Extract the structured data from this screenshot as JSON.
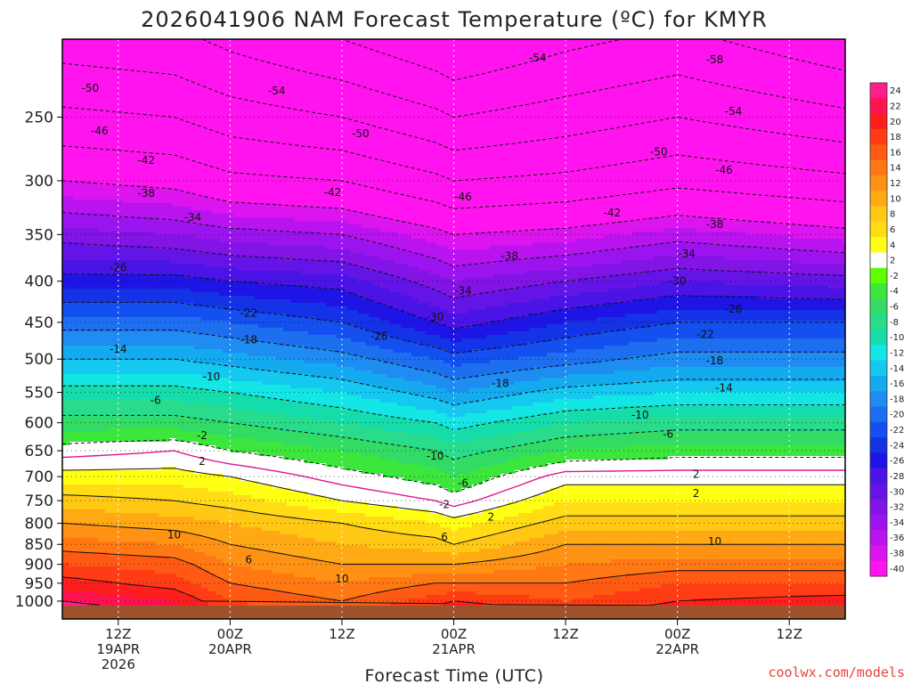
{
  "chart_data": {
    "type": "heatmap",
    "title": "2026041906 NAM Forecast Temperature (ºC) for KMYR",
    "xlabel": "Forecast Time (UTC)",
    "ylabel": "",
    "y_axis": {
      "scale": "log",
      "ticks": [
        250,
        300,
        350,
        400,
        450,
        500,
        550,
        600,
        650,
        700,
        750,
        800,
        850,
        900,
        950,
        1000
      ],
      "range": [
        200,
        1013
      ]
    },
    "x_axis": {
      "range_hours": [
        0,
        84
      ],
      "ticks": [
        {
          "hour": 6,
          "lines": [
            "12Z",
            "19APR",
            "2026"
          ]
        },
        {
          "hour": 18,
          "lines": [
            "00Z",
            "20APR"
          ]
        },
        {
          "hour": 30,
          "lines": [
            "12Z"
          ]
        },
        {
          "hour": 42,
          "lines": [
            "00Z",
            "21APR"
          ]
        },
        {
          "hour": 54,
          "lines": [
            "12Z"
          ]
        },
        {
          "hour": 66,
          "lines": [
            "00Z",
            "22APR"
          ]
        },
        {
          "hour": 78,
          "lines": [
            "12Z"
          ]
        }
      ]
    },
    "grid": true,
    "colorbar": {
      "placement": "right",
      "levels": [
        24,
        22,
        20,
        18,
        16,
        14,
        12,
        10,
        8,
        6,
        4,
        2,
        -2,
        -4,
        -6,
        -8,
        -10,
        -12,
        -14,
        -16,
        -18,
        -20,
        -22,
        -24,
        -26,
        -28,
        -30,
        -32,
        -34,
        -36,
        -38,
        -40
      ],
      "colors": [
        "#ff1e8c",
        "#ff1450",
        "#ff1e1e",
        "#ff3c14",
        "#ff5a14",
        "#ff7814",
        "#ff9114",
        "#ffaa14",
        "#ffc814",
        "#ffdc14",
        "#ffff14",
        "#ffffff",
        "#60ff00",
        "#3ce63c",
        "#32dc64",
        "#28dc8c",
        "#14dcaa",
        "#14e6e6",
        "#14c8f0",
        "#14aaf0",
        "#1e8cf0",
        "#1e6ef0",
        "#1450f0",
        "#1432e6",
        "#1e14e6",
        "#4b14e6",
        "#6414e6",
        "#8214e6",
        "#9b14f0",
        "#b914f0",
        "#dc14f0",
        "#ff14f0"
      ]
    },
    "profile_pressure": [
      250,
      300,
      350,
      400,
      450,
      500,
      550,
      600,
      650,
      700,
      750,
      800,
      850,
      900,
      950,
      1000
    ],
    "profiles": [
      {
        "hour": 0,
        "temps": [
          -45,
          -38,
          -31,
          -25,
          -19,
          -14,
          -9,
          -5,
          -1,
          3,
          7,
          10,
          13,
          16,
          19,
          22
        ]
      },
      {
        "hour": 12,
        "temps": [
          -46,
          -39,
          -32,
          -25,
          -19,
          -14,
          -9,
          -5,
          0,
          3,
          6,
          9,
          12,
          15,
          17,
          20
        ]
      },
      {
        "hour": 18,
        "temps": [
          -48,
          -41,
          -33,
          -26,
          -20,
          -15,
          -10,
          -6,
          -2,
          2,
          5,
          8,
          10,
          12,
          14,
          16
        ]
      },
      {
        "hour": 30,
        "temps": [
          -50,
          -42,
          -34,
          -27,
          -22,
          -17,
          -12,
          -8,
          -4,
          -1,
          2,
          6,
          8,
          10,
          12,
          14
        ]
      },
      {
        "hour": 40,
        "temps": [
          -53,
          -45,
          -37,
          -31,
          -26,
          -20,
          -15,
          -10,
          -6,
          -3,
          0,
          4,
          7,
          10,
          14,
          17
        ]
      },
      {
        "hour": 42,
        "temps": [
          -54,
          -46,
          -38,
          -32,
          -27,
          -21,
          -16,
          -11,
          -7,
          -4,
          -1,
          3,
          6,
          10,
          14,
          18
        ]
      },
      {
        "hour": 54,
        "temps": [
          -52,
          -45,
          -37,
          -30,
          -24,
          -19,
          -13,
          -8,
          -4,
          1,
          4,
          7,
          10,
          12,
          14,
          16
        ]
      },
      {
        "hour": 66,
        "temps": [
          -50,
          -43,
          -35,
          -28,
          -22,
          -17,
          -12,
          -7,
          -3,
          1,
          4,
          7,
          10,
          13,
          16,
          18
        ]
      },
      {
        "hour": 84,
        "temps": [
          -53,
          -45,
          -37,
          -29,
          -22,
          -17,
          -12,
          -7,
          -3,
          1,
          4,
          7,
          10,
          13,
          16,
          19
        ]
      }
    ],
    "contour_labels": [
      {
        "text": "-50",
        "hour": 3,
        "p": 230
      },
      {
        "text": "-54",
        "hour": 23,
        "p": 232
      },
      {
        "text": "-54",
        "hour": 51,
        "p": 211
      },
      {
        "text": "-58",
        "hour": 70,
        "p": 212
      },
      {
        "text": "-46",
        "hour": 4,
        "p": 260
      },
      {
        "text": "-50",
        "hour": 32,
        "p": 262
      },
      {
        "text": "-54",
        "hour": 72,
        "p": 246
      },
      {
        "text": "-42",
        "hour": 9,
        "p": 283
      },
      {
        "text": "-50",
        "hour": 64,
        "p": 276
      },
      {
        "text": "-38",
        "hour": 9,
        "p": 311
      },
      {
        "text": "-42",
        "hour": 29,
        "p": 310
      },
      {
        "text": "-46",
        "hour": 43,
        "p": 314
      },
      {
        "text": "-46",
        "hour": 71,
        "p": 291
      },
      {
        "text": "-34",
        "hour": 14,
        "p": 333
      },
      {
        "text": "-42",
        "hour": 59,
        "p": 329
      },
      {
        "text": "-38",
        "hour": 70,
        "p": 340
      },
      {
        "text": "-26",
        "hour": 6,
        "p": 385
      },
      {
        "text": "-38",
        "hour": 48,
        "p": 372
      },
      {
        "text": "-34",
        "hour": 67,
        "p": 370
      },
      {
        "text": "-30",
        "hour": 66,
        "p": 400
      },
      {
        "text": "-34",
        "hour": 43,
        "p": 411
      },
      {
        "text": "-22",
        "hour": 20,
        "p": 438
      },
      {
        "text": "-30",
        "hour": 40,
        "p": 443
      },
      {
        "text": "-26",
        "hour": 72,
        "p": 433
      },
      {
        "text": "-18",
        "hour": 20,
        "p": 473
      },
      {
        "text": "-26",
        "hour": 34,
        "p": 468
      },
      {
        "text": "-22",
        "hour": 69,
        "p": 466
      },
      {
        "text": "-14",
        "hour": 6,
        "p": 486
      },
      {
        "text": "-18",
        "hour": 70,
        "p": 502
      },
      {
        "text": "-10",
        "hour": 16,
        "p": 526
      },
      {
        "text": "-18",
        "hour": 47,
        "p": 536
      },
      {
        "text": "-14",
        "hour": 71,
        "p": 543
      },
      {
        "text": "-6",
        "hour": 10,
        "p": 563
      },
      {
        "text": "-10",
        "hour": 62,
        "p": 587
      },
      {
        "text": "-2",
        "hour": 15,
        "p": 622
      },
      {
        "text": "-6",
        "hour": 65,
        "p": 620
      },
      {
        "text": "-10",
        "hour": 40,
        "p": 660
      },
      {
        "text": "2",
        "hour": 15,
        "p": 670
      },
      {
        "text": "2",
        "hour": 68,
        "p": 695
      },
      {
        "text": "-6",
        "hour": 43,
        "p": 713
      },
      {
        "text": "2",
        "hour": 68,
        "p": 735
      },
      {
        "text": "-2",
        "hour": 41,
        "p": 758
      },
      {
        "text": "2",
        "hour": 46,
        "p": 786
      },
      {
        "text": "10",
        "hour": 12,
        "p": 827
      },
      {
        "text": "6",
        "hour": 41,
        "p": 832
      },
      {
        "text": "10",
        "hour": 70,
        "p": 843
      },
      {
        "text": "6",
        "hour": 20,
        "p": 888
      },
      {
        "text": "10",
        "hour": 30,
        "p": 938
      }
    ]
  },
  "credit": "coolwx.com/models"
}
